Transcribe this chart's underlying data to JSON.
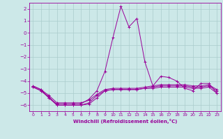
{
  "xlabel": "Windchill (Refroidissement éolien,°C)",
  "background_color": "#cce8e8",
  "grid_color": "#aacccc",
  "line_color": "#990099",
  "xlim": [
    -0.5,
    23.5
  ],
  "ylim": [
    -6.5,
    2.5
  ],
  "yticks": [
    2,
    1,
    0,
    -1,
    -2,
    -3,
    -4,
    -5,
    -6
  ],
  "xticks": [
    0,
    1,
    2,
    3,
    4,
    5,
    6,
    7,
    8,
    9,
    10,
    11,
    12,
    13,
    14,
    15,
    16,
    17,
    18,
    19,
    20,
    21,
    22,
    23
  ],
  "line1_x": [
    0,
    1,
    2,
    3,
    4,
    5,
    6,
    7,
    8,
    9,
    10,
    11,
    12,
    13,
    14,
    15,
    16,
    17,
    18,
    19,
    20,
    21,
    22,
    23
  ],
  "line1_y": [
    -4.5,
    -4.8,
    -5.3,
    -6.0,
    -6.0,
    -6.0,
    -6.0,
    -5.8,
    -5.2,
    -4.8,
    -4.7,
    -4.7,
    -4.7,
    -4.7,
    -4.6,
    -4.5,
    -4.4,
    -4.4,
    -4.4,
    -4.4,
    -4.5,
    -4.5,
    -4.4,
    -4.8
  ],
  "line2_x": [
    0,
    1,
    2,
    3,
    4,
    5,
    6,
    7,
    8,
    9,
    10,
    11,
    12,
    13,
    14,
    15,
    16,
    17,
    18,
    19,
    20,
    21,
    22,
    23
  ],
  "line2_y": [
    -4.5,
    -4.8,
    -5.4,
    -6.0,
    -6.0,
    -6.0,
    -6.0,
    -5.9,
    -5.4,
    -4.8,
    -4.7,
    -4.7,
    -4.7,
    -4.7,
    -4.6,
    -4.6,
    -4.5,
    -4.5,
    -4.5,
    -4.5,
    -4.6,
    -4.6,
    -4.5,
    -5.0
  ],
  "line3_x": [
    0,
    1,
    2,
    3,
    4,
    5,
    6,
    7,
    8,
    9,
    10,
    11,
    12,
    13,
    14,
    15,
    16,
    17,
    18,
    19,
    20,
    21,
    22,
    23
  ],
  "line3_y": [
    -4.4,
    -4.7,
    -5.2,
    -5.8,
    -5.8,
    -5.8,
    -5.8,
    -5.6,
    -5.1,
    -4.7,
    -4.6,
    -4.6,
    -4.6,
    -4.6,
    -4.5,
    -4.4,
    -4.3,
    -4.3,
    -4.3,
    -4.3,
    -4.4,
    -4.4,
    -4.3,
    -4.7
  ],
  "line4_x": [
    0,
    1,
    2,
    3,
    4,
    5,
    6,
    7,
    8,
    9,
    10,
    11,
    12,
    13,
    14,
    15,
    16,
    17,
    18,
    19,
    20,
    21,
    22,
    23
  ],
  "line4_y": [
    -4.4,
    -4.7,
    -5.4,
    -5.9,
    -5.9,
    -5.9,
    -5.9,
    -5.5,
    -4.8,
    -3.2,
    -0.4,
    2.2,
    0.5,
    1.2,
    -2.4,
    -4.4,
    -3.6,
    -3.7,
    -4.0,
    -4.6,
    -4.8,
    -4.2,
    -4.2,
    -5.0
  ]
}
